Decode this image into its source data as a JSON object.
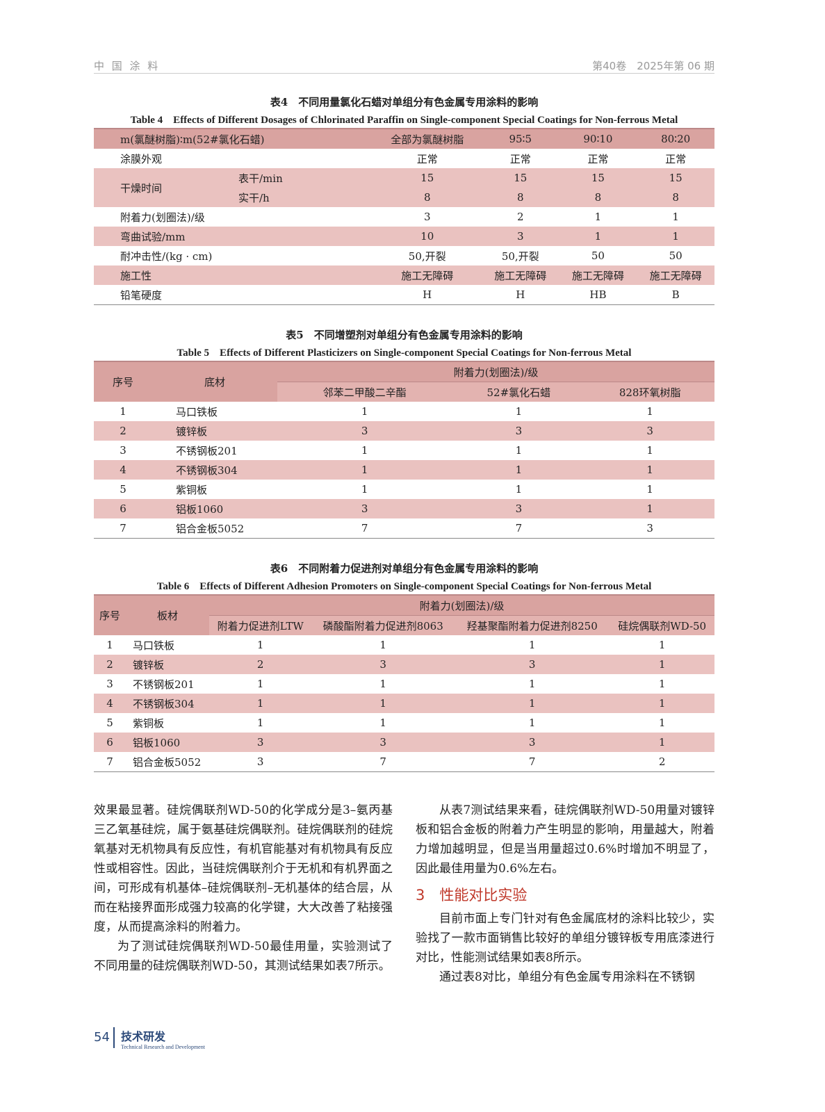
{
  "header": {
    "journal": "中 国 涂 料",
    "issue": "第40卷　2025年第 06 期"
  },
  "table4": {
    "caption_cn": "表4　不同用量氯化石蜡对单组分有色金属专用涂料的影响",
    "caption_en": "Table 4　Effects of Different Dosages of Chlorinated Paraffin on Single-component Special Coatings for Non-ferrous Metal",
    "header": [
      "m(氯醚树脂)∶m(52#氯化石蜡)",
      "全部为氯醚树脂",
      "95∶5",
      "90∶10",
      "80∶20"
    ],
    "rows": [
      {
        "label": "涂膜外观",
        "sub": "",
        "values": [
          "正常",
          "正常",
          "正常",
          "正常"
        ]
      },
      {
        "label": "干燥时间",
        "sub": "表干/min",
        "values": [
          "15",
          "15",
          "15",
          "15"
        ]
      },
      {
        "label": "",
        "sub": "实干/h",
        "values": [
          "8",
          "8",
          "8",
          "8"
        ]
      },
      {
        "label": "附着力(划圈法)/级",
        "sub": "",
        "values": [
          "3",
          "2",
          "1",
          "1"
        ]
      },
      {
        "label": "弯曲试验/mm",
        "sub": "",
        "values": [
          "10",
          "3",
          "1",
          "1"
        ]
      },
      {
        "label": "耐冲击性/(kg · cm)",
        "sub": "",
        "values": [
          "50,开裂",
          "50,开裂",
          "50",
          "50"
        ]
      },
      {
        "label": "施工性",
        "sub": "",
        "values": [
          "施工无障碍",
          "施工无障碍",
          "施工无障碍",
          "施工无障碍"
        ]
      },
      {
        "label": "铅笔硬度",
        "sub": "",
        "values": [
          "H",
          "H",
          "HB",
          "B"
        ]
      }
    ]
  },
  "table5": {
    "caption_cn": "表5　不同增塑剂对单组分有色金属专用涂料的影响",
    "caption_en": "Table 5　Effects of Different Plasticizers on Single-component Special Coatings for Non-ferrous Metal",
    "col_no": "序号",
    "col_sub": "底材",
    "group": "附着力(划圈法)/级",
    "cols": [
      "邻苯二甲酸二辛酯",
      "52#氯化石蜡",
      "828环氧树脂"
    ],
    "rows": [
      [
        "1",
        "马口铁板",
        "1",
        "1",
        "1"
      ],
      [
        "2",
        "镀锌板",
        "3",
        "3",
        "3"
      ],
      [
        "3",
        "不锈钢板201",
        "1",
        "1",
        "1"
      ],
      [
        "4",
        "不锈钢板304",
        "1",
        "1",
        "1"
      ],
      [
        "5",
        "紫铜板",
        "1",
        "1",
        "1"
      ],
      [
        "6",
        "铝板1060",
        "3",
        "3",
        "1"
      ],
      [
        "7",
        "铝合金板5052",
        "7",
        "7",
        "3"
      ]
    ]
  },
  "table6": {
    "caption_cn": "表6　不同附着力促进剂对单组分有色金属专用涂料的影响",
    "caption_en": "Table 6　Effects of Different Adhesion Promoters on Single-component Special Coatings for Non-ferrous Metal",
    "col_no": "序号",
    "col_sub": "板材",
    "group": "附着力(划圈法)/级",
    "cols": [
      "附着力促进剂LTW",
      "磷酸酯附着力促进剂8063",
      "羟基聚酯附着力促进剂8250",
      "硅烷偶联剂WD-50"
    ],
    "rows": [
      [
        "1",
        "马口铁板",
        "1",
        "1",
        "1",
        "1"
      ],
      [
        "2",
        "镀锌板",
        "2",
        "3",
        "3",
        "1"
      ],
      [
        "3",
        "不锈钢板201",
        "1",
        "1",
        "1",
        "1"
      ],
      [
        "4",
        "不锈钢板304",
        "1",
        "1",
        "1",
        "1"
      ],
      [
        "5",
        "紫铜板",
        "1",
        "1",
        "1",
        "1"
      ],
      [
        "6",
        "铝板1060",
        "3",
        "3",
        "3",
        "1"
      ],
      [
        "7",
        "铝合金板5052",
        "3",
        "7",
        "7",
        "2"
      ]
    ]
  },
  "text": {
    "left_p1": "效果最显著。硅烷偶联剂WD-50的化学成分是3–氨丙基三乙氧基硅烷，属于氨基硅烷偶联剂。硅烷偶联剂的硅烷氧基对无机物具有反应性，有机官能基对有机物具有反应性或相容性。因此，当硅烷偶联剂介于无机和有机界面之间，可形成有机基体–硅烷偶联剂–无机基体的结合层，从而在粘接界面形成强力较高的化学键，大大改善了粘接强度，从而提高涂料的附着力。",
    "left_p2": "为了测试硅烷偶联剂WD-50最佳用量，实验测试了不同用量的硅烷偶联剂WD-50，其测试结果如表7所示。",
    "right_p1": "从表7测试结果来看，硅烷偶联剂WD-50用量对镀锌板和铝合金板的附着力产生明显的影响，用量越大，附着力增加越明显，但是当用量超过0.6%时增加不明显了，因此最佳用量为0.6%左右。",
    "section": "3　性能对比实验",
    "right_p2": "目前市面上专门针对有色金属底材的涂料比较少，实验找了一款市面销售比较好的单组分镀锌板专用底漆进行对比，性能测试结果如表8所示。",
    "right_p3": "通过表8对比，单组分有色金属专用涂料在不锈钢"
  },
  "footer": {
    "page": "54",
    "section_cn": "技术研发",
    "section_en": "Technical Research and Development"
  }
}
